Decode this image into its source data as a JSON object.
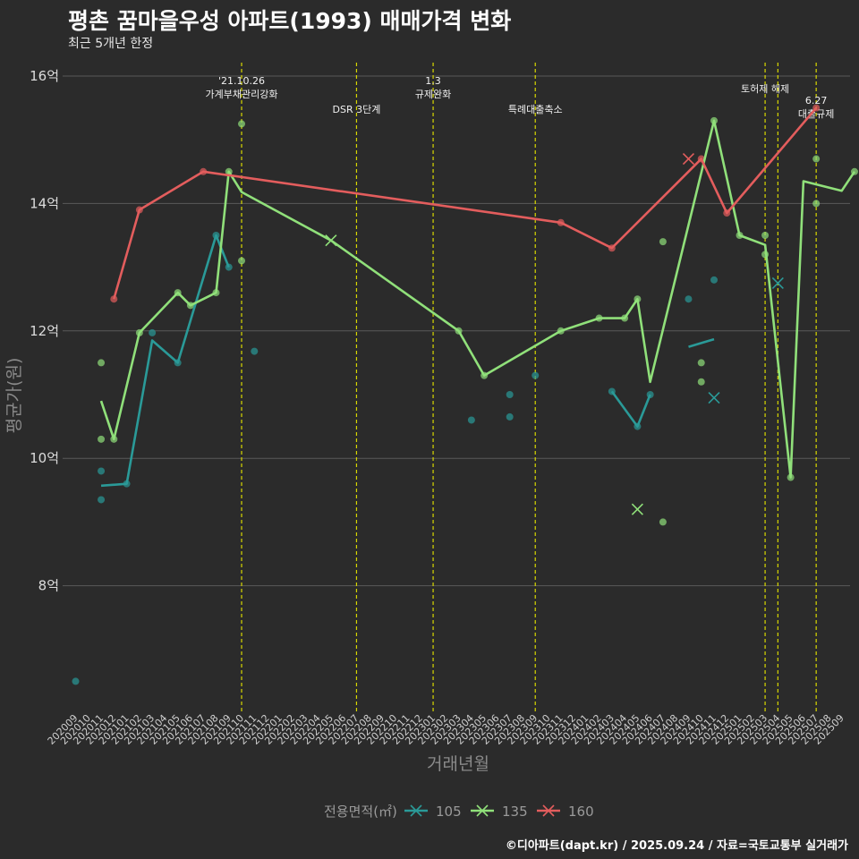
{
  "header": {
    "title": "평촌 꿈마을우성 아파트(1993) 매매가격 변화",
    "subtitle": "최근 5개년 한정"
  },
  "footer": "©디아파트(dapt.kr) / 2025.09.24 / 자료=국토교통부 실거래가",
  "colors": {
    "s105": "#2a9a98",
    "s135": "#90e07a",
    "s160": "#e35d5d",
    "event": "#d8d800",
    "grid": "#5a5a5a",
    "bg": "#2b2b2b"
  },
  "chart_data": {
    "type": "line",
    "title": "평촌 꿈마을우성 아파트(1993) 매매가격 변화",
    "xlabel": "거래년월",
    "ylabel": "평균가(원)",
    "ylim": [
      6.0,
      16.3
    ],
    "yticks": [
      8,
      10,
      12,
      14,
      16
    ],
    "ytick_labels": [
      "8억",
      "10억",
      "12억",
      "14억",
      "16억"
    ],
    "months": [
      "202009",
      "202010",
      "202011",
      "202012",
      "202101",
      "202102",
      "202103",
      "202104",
      "202105",
      "202106",
      "202107",
      "202108",
      "202109",
      "202110",
      "202111",
      "202112",
      "202201",
      "202202",
      "202203",
      "202204",
      "202205",
      "202206",
      "202207",
      "202208",
      "202209",
      "202210",
      "202211",
      "202212",
      "202301",
      "202302",
      "202303",
      "202304",
      "202305",
      "202306",
      "202307",
      "202308",
      "202309",
      "202310",
      "202311",
      "202312",
      "202401",
      "202402",
      "202403",
      "202404",
      "202405",
      "202406",
      "202407",
      "202408",
      "202409",
      "202410",
      "202411",
      "202412",
      "202501",
      "202502",
      "202503",
      "202504",
      "202505",
      "202506",
      "202507",
      "202508",
      "202509"
    ],
    "xtick_labels": [
      "202009",
      "202010",
      "202011",
      "202012",
      "202101",
      "202102",
      "202103",
      "202104",
      "202105",
      "202106",
      "202107",
      "202108",
      "202109",
      "202110",
      "202111",
      "202112",
      "202201",
      "202202",
      "202203",
      "202204",
      "202205",
      "202206",
      "202207",
      "202208",
      "202209",
      "202210",
      "202211",
      "202212",
      "202301",
      "202302",
      "202303",
      "202304",
      "202305",
      "202306",
      "202307",
      "202308",
      "202309",
      "202310",
      "202311",
      "202312",
      "202401",
      "202402",
      "202403",
      "202404",
      "202405",
      "202406",
      "202407",
      "202408",
      "202409",
      "202410",
      "202411",
      "202412",
      "202501",
      "202502",
      "202503",
      "202504",
      "202505",
      "202506",
      "202507",
      "202508",
      "202509"
    ],
    "legend_title": "전용면적(㎡)",
    "legend_position": "bottom",
    "series": [
      {
        "name": "105",
        "color_key": "s105",
        "lines": [
          [
            [
              2,
              9.57
            ],
            [
              4,
              9.6
            ],
            [
              6,
              11.85
            ],
            [
              8,
              11.5
            ],
            [
              11,
              13.5
            ],
            [
              12,
              13.0
            ]
          ],
          [
            [
              42,
              11.05
            ],
            [
              44,
              10.5
            ],
            [
              45,
              11.0
            ]
          ],
          [
            [
              48,
              11.75
            ],
            [
              50,
              11.87
            ]
          ]
        ],
        "points": [
          [
            0,
            6.5
          ],
          [
            2,
            9.8
          ],
          [
            2,
            9.35
          ],
          [
            4,
            9.6
          ],
          [
            6,
            11.97
          ],
          [
            8,
            11.5
          ],
          [
            11,
            13.5
          ],
          [
            12,
            13.0
          ],
          [
            14,
            11.68
          ],
          [
            31,
            10.6
          ],
          [
            34,
            11.0
          ],
          [
            34,
            10.65
          ],
          [
            36,
            11.3
          ],
          [
            42,
            11.05
          ],
          [
            44,
            10.5
          ],
          [
            45,
            11.0
          ],
          [
            48,
            12.5
          ],
          [
            50,
            12.8
          ]
        ],
        "cancelled": [
          [
            50,
            10.95
          ],
          [
            55,
            12.75
          ]
        ]
      },
      {
        "name": "135",
        "color_key": "s135",
        "lines": [
          [
            [
              2,
              10.9
            ],
            [
              3,
              10.3
            ],
            [
              5,
              11.97
            ],
            [
              8,
              12.6
            ],
            [
              9,
              12.4
            ],
            [
              11,
              12.6
            ],
            [
              12,
              14.5
            ],
            [
              13,
              14.18
            ],
            [
              20,
              13.42
            ],
            [
              30,
              12.0
            ],
            [
              32,
              11.3
            ],
            [
              38,
              12.0
            ],
            [
              41,
              12.2
            ],
            [
              43,
              12.2
            ],
            [
              44,
              12.5
            ],
            [
              45,
              11.2
            ],
            [
              50,
              15.3
            ],
            [
              52,
              13.5
            ],
            [
              54,
              13.35
            ],
            [
              56,
              9.7
            ],
            [
              57,
              14.35
            ],
            [
              60,
              14.2
            ],
            [
              61,
              14.5
            ]
          ]
        ],
        "points": [
          [
            2,
            11.5
          ],
          [
            2,
            10.3
          ],
          [
            3,
            10.3
          ],
          [
            5,
            11.97
          ],
          [
            8,
            12.6
          ],
          [
            9,
            12.4
          ],
          [
            11,
            12.6
          ],
          [
            12,
            14.5
          ],
          [
            13,
            15.25
          ],
          [
            13,
            13.1
          ],
          [
            30,
            12.0
          ],
          [
            32,
            11.3
          ],
          [
            38,
            12.0
          ],
          [
            41,
            12.2
          ],
          [
            43,
            12.2
          ],
          [
            44,
            12.5
          ],
          [
            46,
            9.0
          ],
          [
            46,
            13.4
          ],
          [
            49,
            11.5
          ],
          [
            49,
            11.2
          ],
          [
            50,
            15.3
          ],
          [
            52,
            13.5
          ],
          [
            54,
            13.5
          ],
          [
            54,
            13.2
          ],
          [
            56,
            9.7
          ],
          [
            58,
            14.7
          ],
          [
            58,
            14.0
          ],
          [
            61,
            14.5
          ]
        ],
        "cancelled": [
          [
            20,
            13.42
          ],
          [
            44,
            9.2
          ]
        ]
      },
      {
        "name": "160",
        "color_key": "s160",
        "lines": [
          [
            [
              3,
              12.5
            ],
            [
              5,
              13.9
            ],
            [
              10,
              14.5
            ],
            [
              38,
              13.7
            ],
            [
              42,
              13.3
            ],
            [
              49,
              14.7
            ],
            [
              51,
              13.85
            ],
            [
              58,
              15.5
            ]
          ]
        ],
        "points": [
          [
            3,
            12.5
          ],
          [
            5,
            13.9
          ],
          [
            10,
            14.5
          ],
          [
            38,
            13.7
          ],
          [
            42,
            13.3
          ],
          [
            49,
            14.7
          ],
          [
            51,
            13.85
          ],
          [
            58,
            15.5
          ]
        ],
        "cancelled": [
          [
            48,
            14.7
          ]
        ]
      }
    ],
    "events": [
      {
        "at": 13,
        "label": "'21.10.26\n가계부채관리강화",
        "row": 0
      },
      {
        "at": 22,
        "label": "DSR 3단계",
        "row": 2
      },
      {
        "at": 28,
        "label": "1.3\n규제완화",
        "row": 0
      },
      {
        "at": 36,
        "label": "특례대출축소",
        "row": 2
      },
      {
        "at": 54,
        "label": "토허제 해제",
        "row": 1
      },
      {
        "at": 55,
        "label": "",
        "row": 1
      },
      {
        "at": 58,
        "label": "6.27\n대출규제",
        "row": 3
      }
    ]
  }
}
